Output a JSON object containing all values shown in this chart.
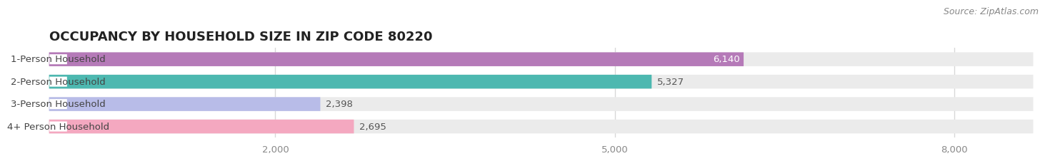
{
  "title": "OCCUPANCY BY HOUSEHOLD SIZE IN ZIP CODE 80220",
  "source": "Source: ZipAtlas.com",
  "categories": [
    "1-Person Household",
    "2-Person Household",
    "3-Person Household",
    "4+ Person Household"
  ],
  "values": [
    6140,
    5327,
    2398,
    2695
  ],
  "bar_colors": [
    "#b57ab8",
    "#4db8b0",
    "#b8bce8",
    "#f4a8c0"
  ],
  "value_inside": [
    true,
    false,
    false,
    false
  ],
  "xlim": [
    0,
    8700
  ],
  "xticks": [
    2000,
    5000,
    8000
  ],
  "xtick_labels": [
    "2,000",
    "5,000",
    "8,000"
  ],
  "title_fontsize": 13,
  "source_fontsize": 9,
  "label_fontsize": 9.5,
  "value_fontsize": 9.5,
  "bar_height": 0.62,
  "background_color": "#ffffff",
  "bar_bg_color": "#ebebeb",
  "grid_color": "#d8d8d8",
  "label_bg_color": "#ffffff",
  "label_text_color": "#444444",
  "value_dark_color": "#555555",
  "value_light_color": "#ffffff"
}
